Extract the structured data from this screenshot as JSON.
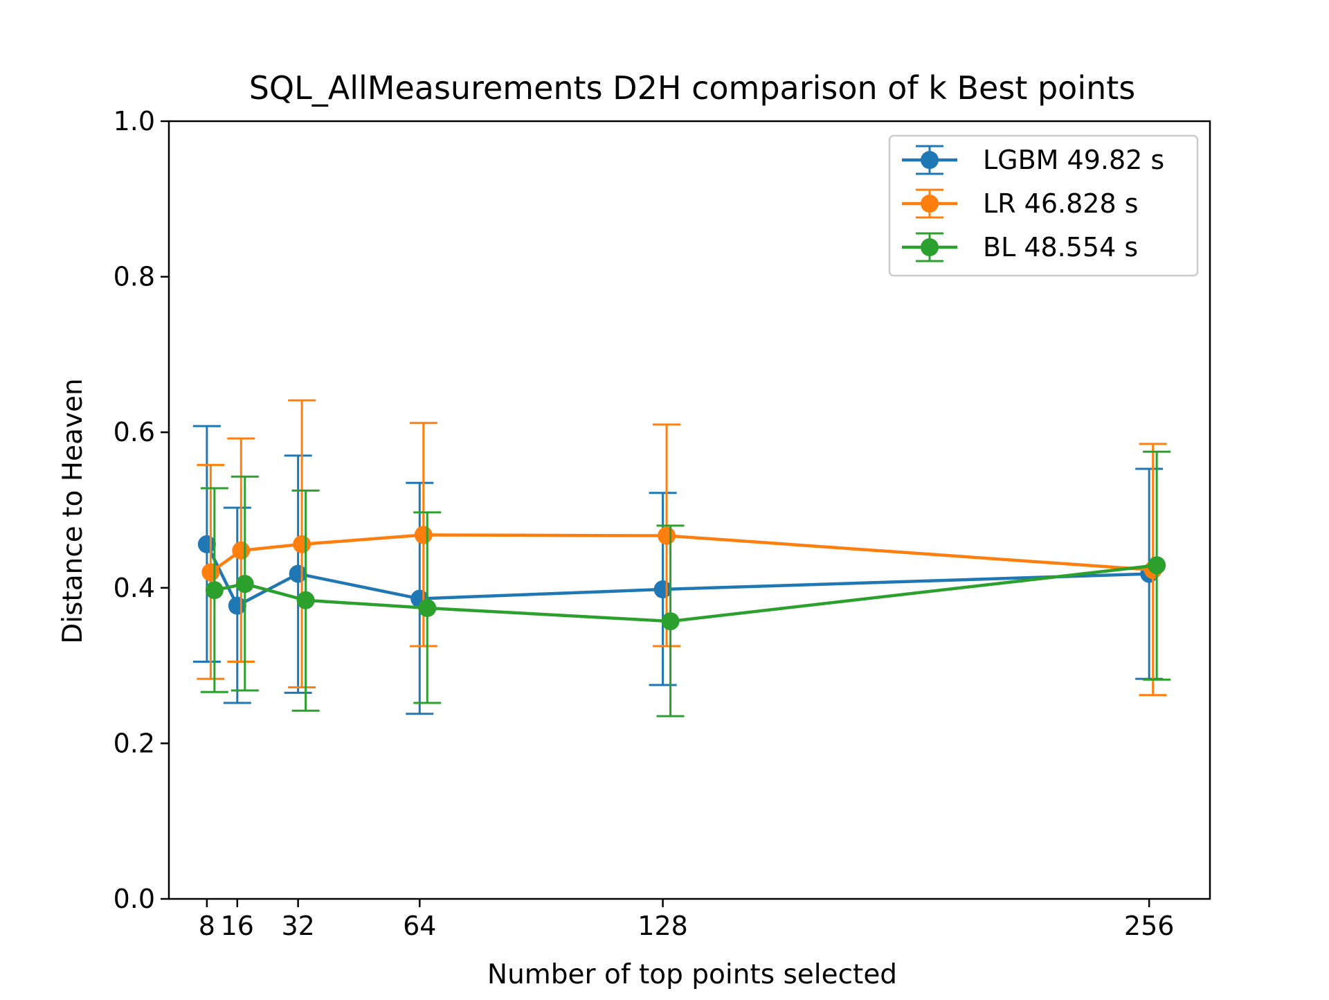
{
  "chart_data": {
    "type": "line",
    "title": "SQL_AllMeasurements D2H comparison of k Best points",
    "xlabel": "Number of top points selected",
    "ylabel": "Distance to Heaven",
    "xlim": [
      -2,
      272
    ],
    "ylim": [
      0,
      1
    ],
    "xticks": [
      8,
      16,
      32,
      64,
      128,
      256
    ],
    "xtick_labels": [
      "8",
      "16",
      "32",
      "64",
      "128",
      "256"
    ],
    "yticks": [
      0,
      0.2,
      0.4,
      0.6,
      0.8,
      1.0
    ],
    "ytick_labels": [
      "0.0",
      "0.2",
      "0.4",
      "0.6",
      "0.8",
      "1.0"
    ],
    "grid": false,
    "legend_position": "top-right",
    "series": [
      {
        "name": "LGBM 49.82 s",
        "color": "#1f77b4",
        "x": [
          8,
          16,
          32,
          64,
          128,
          256
        ],
        "y": [
          0.456,
          0.377,
          0.418,
          0.386,
          0.398,
          0.418
        ],
        "err_low": [
          0.305,
          0.252,
          0.265,
          0.238,
          0.275,
          0.283
        ],
        "err_high": [
          0.608,
          0.503,
          0.57,
          0.535,
          0.522,
          0.553
        ]
      },
      {
        "name": "LR 46.828 s",
        "color": "#ff7f0e",
        "x": [
          9,
          17,
          33,
          65,
          129,
          257
        ],
        "y": [
          0.42,
          0.448,
          0.456,
          0.468,
          0.467,
          0.423
        ],
        "err_low": [
          0.283,
          0.305,
          0.272,
          0.325,
          0.325,
          0.262
        ],
        "err_high": [
          0.558,
          0.592,
          0.641,
          0.612,
          0.61,
          0.585
        ]
      },
      {
        "name": "BL 48.554 s",
        "color": "#2ca02c",
        "x": [
          10,
          18,
          34,
          66,
          130,
          258
        ],
        "y": [
          0.397,
          0.405,
          0.384,
          0.374,
          0.357,
          0.429
        ],
        "err_low": [
          0.266,
          0.268,
          0.242,
          0.252,
          0.235,
          0.282
        ],
        "err_high": [
          0.528,
          0.543,
          0.525,
          0.497,
          0.48,
          0.575
        ]
      }
    ]
  }
}
